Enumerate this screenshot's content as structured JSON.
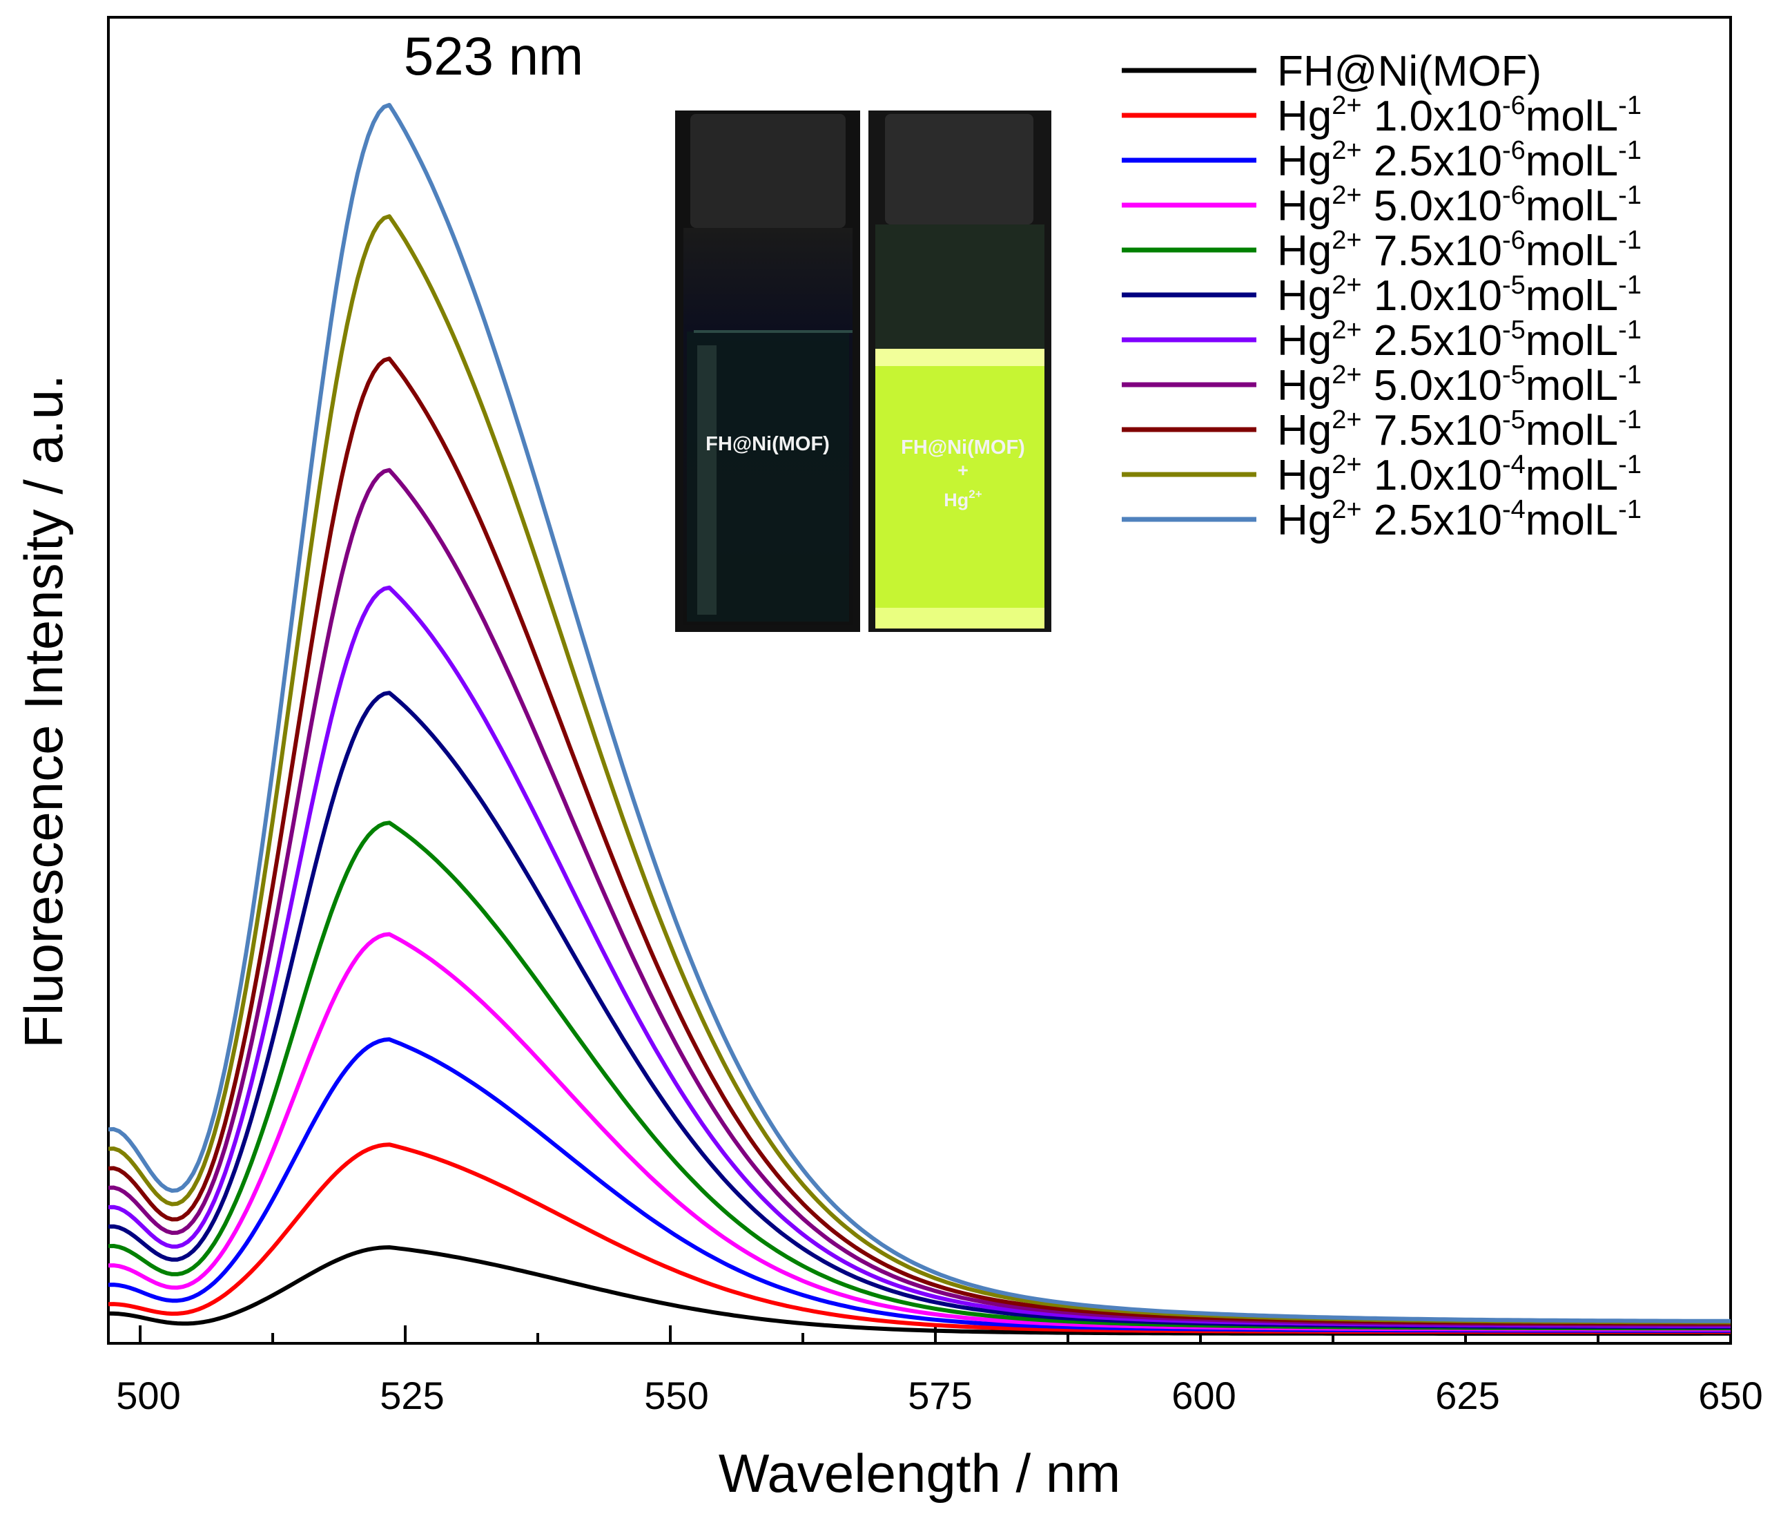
{
  "chart_data": {
    "type": "line",
    "title": "",
    "xlabel": "Wavelength / nm",
    "ylabel": "Fluorescence Intensity / a.u.",
    "xlim": [
      497,
      650
    ],
    "ylim": [
      0,
      100
    ],
    "xticks": [
      "500",
      "525",
      "550",
      "575",
      "600",
      "625",
      "650"
    ],
    "peak_annotation": "523 nm",
    "peak_wavelength": 523,
    "grid": false,
    "legend_position": "top-right",
    "series": [
      {
        "name": "FH@Ni(MOF)",
        "legend_main": "FH@Ni(MOF)",
        "sup1": "",
        "mant": "",
        "sup2": "",
        "unit": "",
        "color": "#000000",
        "peak": 7.2,
        "start": 1.8,
        "end": 0.25
      },
      {
        "name": "Hg2+ 1.0x10-6molL-1",
        "legend_main": "Hg",
        "sup1": "2+",
        "mant": " 1.0x10",
        "sup2": "-6",
        "unit": "molL",
        "sup3": "-1",
        "color": "#ff0000",
        "peak": 15.5,
        "start": 2.5,
        "end": 0.4
      },
      {
        "name": "Hg2+ 2.5x10-6molL-1",
        "legend_main": "Hg",
        "sup1": "2+",
        "mant": " 2.5x10",
        "sup2": "-6",
        "unit": "molL",
        "sup3": "-1",
        "color": "#0000ff",
        "peak": 24.0,
        "start": 4.0,
        "end": 0.5
      },
      {
        "name": "Hg2+ 5.0x10-6molL-1",
        "legend_main": "Hg",
        "sup1": "2+",
        "mant": " 5.0x10",
        "sup2": "-6",
        "unit": "molL",
        "sup3": "-1",
        "color": "#ff00ff",
        "peak": 32.5,
        "start": 5.5,
        "end": 0.6
      },
      {
        "name": "Hg2+ 7.5x10-6molL-1",
        "legend_main": "Hg",
        "sup1": "2+",
        "mant": " 7.5x10",
        "sup2": "-6",
        "unit": "molL",
        "sup3": "-1",
        "color": "#008000",
        "peak": 41.5,
        "start": 7.0,
        "end": 0.7
      },
      {
        "name": "Hg2+ 1.0x10-5molL-1",
        "legend_main": "Hg",
        "sup1": "2+",
        "mant": " 1.0x10",
        "sup2": "-5",
        "unit": "molL",
        "sup3": "-1",
        "color": "#000080",
        "peak": 52.0,
        "start": 8.5,
        "end": 0.8
      },
      {
        "name": "Hg2+ 2.5x10-5molL-1",
        "legend_main": "Hg",
        "sup1": "2+",
        "mant": " 2.5x10",
        "sup2": "-5",
        "unit": "molL",
        "sup3": "-1",
        "color": "#8000ff",
        "peak": 60.5,
        "start": 10.0,
        "end": 0.9
      },
      {
        "name": "Hg2+ 5.0x10-5molL-1",
        "legend_main": "Hg",
        "sup1": "2+",
        "mant": " 5.0x10",
        "sup2": "-5",
        "unit": "molL",
        "sup3": "-1",
        "color": "#800080",
        "peak": 70.0,
        "start": 11.5,
        "end": 1.0
      },
      {
        "name": "Hg2+ 7.5x10-5molL-1",
        "legend_main": "Hg",
        "sup1": "2+",
        "mant": " 7.5x10",
        "sup2": "-5",
        "unit": "molL",
        "sup3": "-1",
        "color": "#800000",
        "peak": 79.0,
        "start": 13.0,
        "end": 1.1
      },
      {
        "name": "Hg2+ 1.0x10-4molL-1",
        "legend_main": "Hg",
        "sup1": "2+",
        "mant": " 1.0x10",
        "sup2": "-4",
        "unit": "molL",
        "sup3": "-1",
        "color": "#808000",
        "peak": 90.5,
        "start": 14.5,
        "end": 1.2
      },
      {
        "name": "Hg2+ 2.5x10-4molL-1",
        "legend_main": "Hg",
        "sup1": "2+",
        "mant": " 2.5x10",
        "sup2": "-4",
        "unit": "molL",
        "sup3": "-1",
        "color": "#4f81bd",
        "peak": 99.5,
        "start": 16.0,
        "end": 1.3
      }
    ]
  },
  "inset": {
    "left_label": "FH@Ni(MOF)",
    "right_label_line1": "FH@Ni(MOF)",
    "right_label_line2": "+",
    "right_label_line3": "Hg",
    "right_label_sup": "2+"
  }
}
